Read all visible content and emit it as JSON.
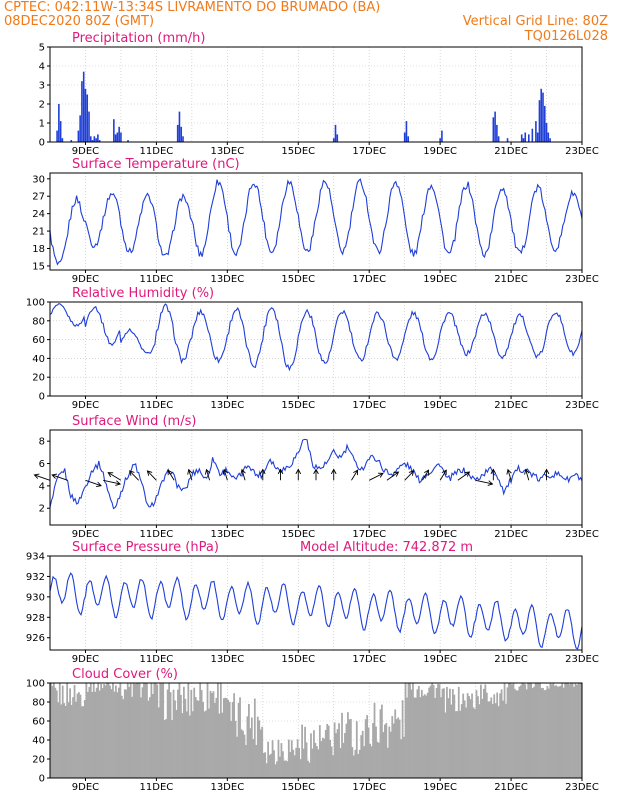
{
  "header": {
    "line1": "CPTEC:   042:11W-13:34S   LIVRAMENTO DO BRUMADO (BA)",
    "line2_left": "08DEC2020 80Z (GMT)",
    "line2_right": "Vertical Grid Line: 80Z",
    "line3_right": "TQ0126L028"
  },
  "colors": {
    "header": "#f07a1a",
    "title": "#e0197c",
    "line": "#1f3fd6",
    "bar": "#1f3fd6",
    "cloud": "#a9a9a9"
  },
  "x_ticks": [
    "9DEC",
    "11DEC",
    "13DEC",
    "15DEC",
    "17DEC",
    "19DEC",
    "21DEC",
    "23DEC"
  ],
  "chart_data": [
    {
      "id": "precip",
      "type": "bar",
      "title": "Precipitation (mm/h)",
      "ylim": [
        0,
        5
      ],
      "yticks": [
        0,
        1,
        2,
        3,
        4,
        5
      ],
      "grid": "dotted",
      "x_days": [
        0.2,
        0.25,
        0.3,
        0.35,
        0.6,
        0.8,
        0.85,
        0.9,
        0.95,
        1.0,
        1.05,
        1.1,
        1.15,
        1.2,
        1.25,
        1.3,
        1.35,
        1.4,
        1.8,
        1.85,
        1.9,
        1.95,
        2.0,
        2.2,
        3.6,
        3.65,
        3.7,
        3.75,
        8.0,
        8.05,
        8.1,
        10.0,
        10.05,
        10.1,
        11.0,
        11.05,
        12.5,
        12.55,
        12.6,
        12.65,
        12.9,
        13.3,
        13.35,
        13.4,
        13.5,
        13.6,
        13.7,
        13.75,
        13.8,
        13.85,
        13.9,
        13.95,
        14.0,
        14.05,
        14.1
      ],
      "values": [
        0.6,
        2.0,
        1.1,
        0.2,
        0.1,
        0.6,
        1.4,
        3.2,
        3.7,
        2.8,
        2.5,
        1.6,
        0.3,
        0.1,
        0.3,
        0.2,
        0.4,
        0.1,
        1.2,
        0.4,
        0.5,
        0.8,
        0.5,
        0.1,
        0.9,
        1.6,
        0.8,
        0.3,
        0.2,
        0.9,
        0.4,
        0.5,
        1.1,
        0.3,
        0.2,
        0.6,
        1.3,
        1.6,
        0.9,
        0.3,
        0.2,
        0.4,
        0.2,
        0.5,
        0.4,
        0.7,
        1.1,
        0.5,
        2.2,
        2.8,
        2.6,
        1.9,
        1.0,
        0.5,
        0.2
      ]
    },
    {
      "id": "temp",
      "type": "line",
      "title": "Surface Temperature (nC)",
      "ylim": [
        14.3,
        31.0
      ],
      "yticks": [
        15,
        18,
        21,
        24,
        27,
        30
      ],
      "daily_max": [
        26.5,
        27.5,
        27,
        27,
        29.5,
        29.5,
        29.5,
        29.5,
        29.5,
        29.5,
        29,
        29,
        28.5,
        28.5,
        27.5
      ],
      "daily_min": [
        15,
        18.5,
        17.5,
        16.5,
        17,
        17,
        17.5,
        17.5,
        17.5,
        17.5,
        17,
        17,
        17,
        17,
        18
      ],
      "first_min": 15
    },
    {
      "id": "rh",
      "type": "line",
      "title": "Relative Humidity (%)",
      "ylim": [
        0,
        100
      ],
      "yticks": [
        0,
        20,
        40,
        60,
        80,
        100
      ],
      "grid": "dotted",
      "daily_max": [
        97,
        95,
        70,
        95,
        90,
        92,
        95,
        90,
        90,
        88,
        88,
        88,
        88,
        85,
        90
      ],
      "daily_min": [
        75,
        55,
        45,
        38,
        38,
        33,
        30,
        35,
        38,
        40,
        40,
        45,
        42,
        42,
        45
      ],
      "first_max": 100
    },
    {
      "id": "wind",
      "type": "line",
      "title": "Surface Wind (m/s)",
      "ylim": [
        0.5,
        9.0
      ],
      "yticks": [
        2,
        4,
        6,
        8
      ],
      "speed": [
        2,
        4.5,
        5.5,
        3,
        2.5,
        4,
        5.5,
        6,
        4,
        1.8,
        3.5,
        5,
        6,
        4,
        1.8,
        3,
        4.5,
        5.5,
        4,
        3.5,
        5,
        5.5,
        4.5,
        6.5,
        5,
        5.5,
        4.5,
        5,
        6,
        5,
        5,
        6.5,
        5.5,
        5.5,
        6,
        7,
        8.5,
        6,
        5.5,
        6,
        7,
        6.5,
        7.5,
        6,
        5.5,
        6.5,
        6.5,
        5.5,
        5,
        5.5,
        6,
        5.5,
        4.5,
        5,
        5.5,
        6,
        4.5,
        5,
        5.5,
        5,
        4.5,
        5,
        5.5,
        5,
        3.5,
        4.5,
        5.5,
        5.5,
        5,
        4.5,
        5,
        5,
        5,
        4.5,
        5,
        4.5
      ],
      "vector_x_days": [
        0,
        0.5,
        1,
        1.5,
        2,
        2.5,
        3,
        3.5,
        4,
        4.5,
        5,
        5.5,
        6,
        6.5,
        7,
        7.5,
        8,
        8.5,
        9,
        9.5,
        10,
        10.5,
        11,
        11.5,
        12,
        12.5,
        13,
        13.5,
        14
      ],
      "vector_dir_deg": [
        30,
        30,
        210,
        200,
        45,
        60,
        60,
        70,
        80,
        80,
        80,
        80,
        90,
        90,
        90,
        90,
        90,
        110,
        140,
        130,
        120,
        110,
        110,
        130,
        200,
        90,
        80,
        80,
        90
      ]
    },
    {
      "id": "pressure",
      "type": "line",
      "title": "Surface Pressure (hPa)",
      "annotation": "Model Altitude: 742.872 m",
      "ylim": [
        924.8,
        934.0
      ],
      "yticks": [
        926,
        928,
        930,
        932,
        934
      ],
      "hourly_mean": [
        930.5,
        930.2,
        930,
        930,
        929.8,
        929.5,
        929.5,
        929.2,
        929,
        928.8,
        928.5,
        928.2,
        927.8,
        927.3,
        927
      ]
    },
    {
      "id": "cloud",
      "type": "bar",
      "title": "Cloud Cover (%)",
      "ylim": [
        0,
        100
      ],
      "yticks": [
        0,
        20,
        40,
        60,
        80,
        100
      ],
      "grid": "dotted",
      "daily_level": [
        88,
        98,
        95,
        82,
        90,
        62,
        32,
        38,
        46,
        58,
        95,
        82,
        88,
        98,
        99
      ],
      "daily_spread": [
        14,
        8,
        14,
        22,
        24,
        28,
        18,
        22,
        26,
        28,
        12,
        14,
        14,
        6,
        6
      ]
    }
  ]
}
